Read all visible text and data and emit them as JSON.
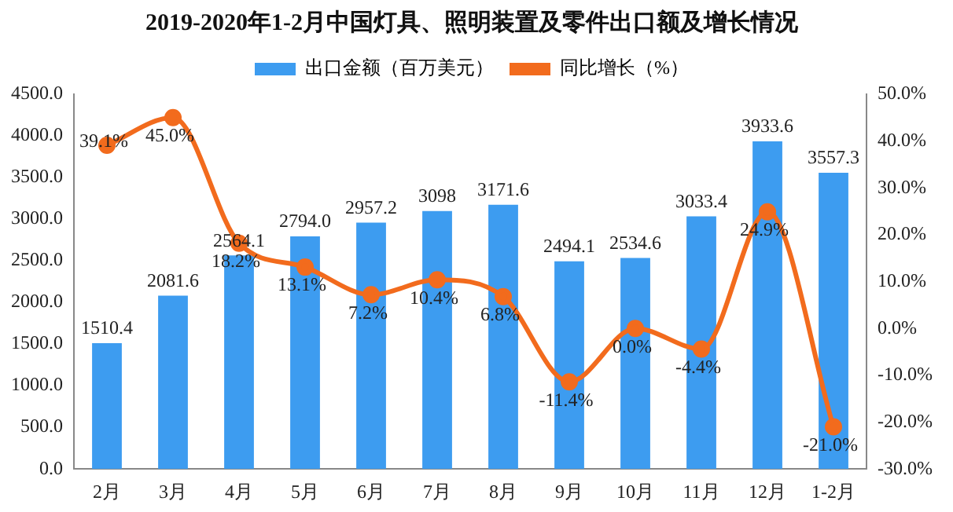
{
  "chart_data": {
    "type": "bar",
    "title": "2019-2020年1-2月中国灯具、照明装置及零件出口额及增长情况",
    "categories": [
      "2月",
      "3月",
      "4月",
      "5月",
      "6月",
      "7月",
      "8月",
      "9月",
      "10月",
      "11月",
      "12月",
      "1-2月"
    ],
    "series": [
      {
        "name": "出口金额（百万美元）",
        "color": "#3d9cf0",
        "values": [
          1510.4,
          2081.6,
          2564.1,
          2794.0,
          2957.2,
          3098,
          3171.6,
          2494.1,
          2534.6,
          3033.4,
          3933.6,
          3557.3
        ],
        "value_labels": [
          "1510.4",
          "2081.6",
          "2564.1",
          "2794.0",
          "2957.2",
          "3098",
          "3171.6",
          "2494.1",
          "2534.6",
          "3033.4",
          "3933.6",
          "3557.3"
        ]
      },
      {
        "name": "同比增长（%）",
        "type": "line",
        "axis": "y2",
        "color": "#f26b1d",
        "marker": "circle",
        "values": [
          39.1,
          45.0,
          18.2,
          13.1,
          7.2,
          10.4,
          6.8,
          -11.4,
          0.0,
          -4.4,
          24.9,
          -21.0
        ],
        "value_labels": [
          "39.1%",
          "45.0%",
          "18.2%",
          "13.1%",
          "7.2%",
          "10.4%",
          "6.8%",
          "-11.4%",
          "0.0%",
          "-4.4%",
          "24.9%",
          "-21.0%"
        ]
      }
    ],
    "ylim": [
      0,
      4500
    ],
    "yticks": [
      {
        "value": 0,
        "label": "0.0"
      },
      {
        "value": 500,
        "label": "500.0"
      },
      {
        "value": 1000,
        "label": "1000.0"
      },
      {
        "value": 1500,
        "label": "1500.0"
      },
      {
        "value": 2000,
        "label": "2000.0"
      },
      {
        "value": 2500,
        "label": "2500.0"
      },
      {
        "value": 3000,
        "label": "3000.0"
      },
      {
        "value": 3500,
        "label": "3500.0"
      },
      {
        "value": 4000,
        "label": "4000.0"
      },
      {
        "value": 4500,
        "label": "4500.0"
      }
    ],
    "y2lim": [
      -30,
      50
    ],
    "y2ticks": [
      {
        "value": -30,
        "label": "-30.0%"
      },
      {
        "value": -20,
        "label": "-20.0%"
      },
      {
        "value": -10,
        "label": "-10.0%"
      },
      {
        "value": 0,
        "label": "0.0%"
      },
      {
        "value": 10,
        "label": "10.0%"
      },
      {
        "value": 20,
        "label": "20.0%"
      },
      {
        "value": 30,
        "label": "30.0%"
      },
      {
        "value": 40,
        "label": "40.0%"
      },
      {
        "value": 50,
        "label": "50.0%"
      }
    ],
    "grid": false,
    "legend": "top"
  }
}
